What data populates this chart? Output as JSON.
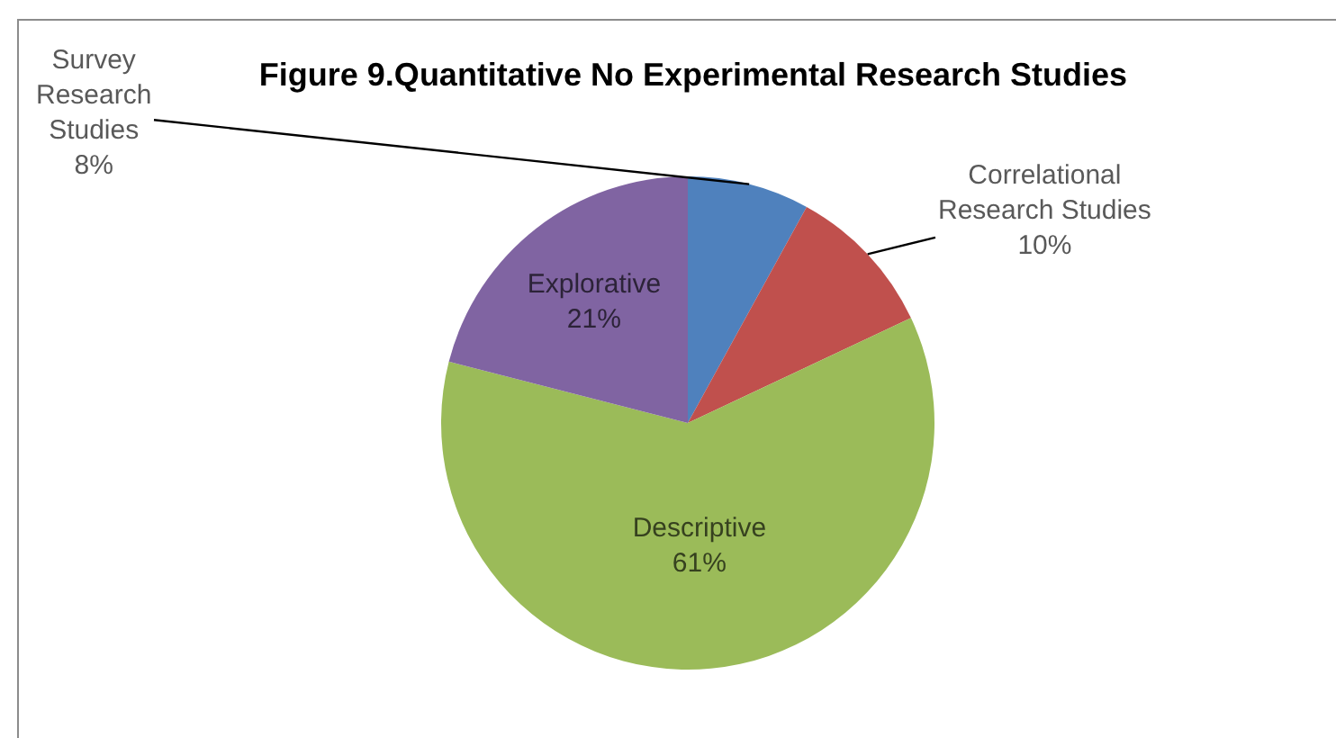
{
  "chart_data": {
    "type": "pie",
    "title": "Figure 9.Quantitative No Experimental Research Studies",
    "categories": [
      "Survey Research Studies",
      "Correlational Research Studies",
      "Descriptive",
      "Explorative"
    ],
    "values": [
      8,
      10,
      61,
      21
    ],
    "value_labels": [
      "8%",
      "10%",
      "61%",
      "21%"
    ],
    "colors": [
      "#4f81bd",
      "#c0504d",
      "#9bbb59",
      "#8064a2"
    ]
  }
}
